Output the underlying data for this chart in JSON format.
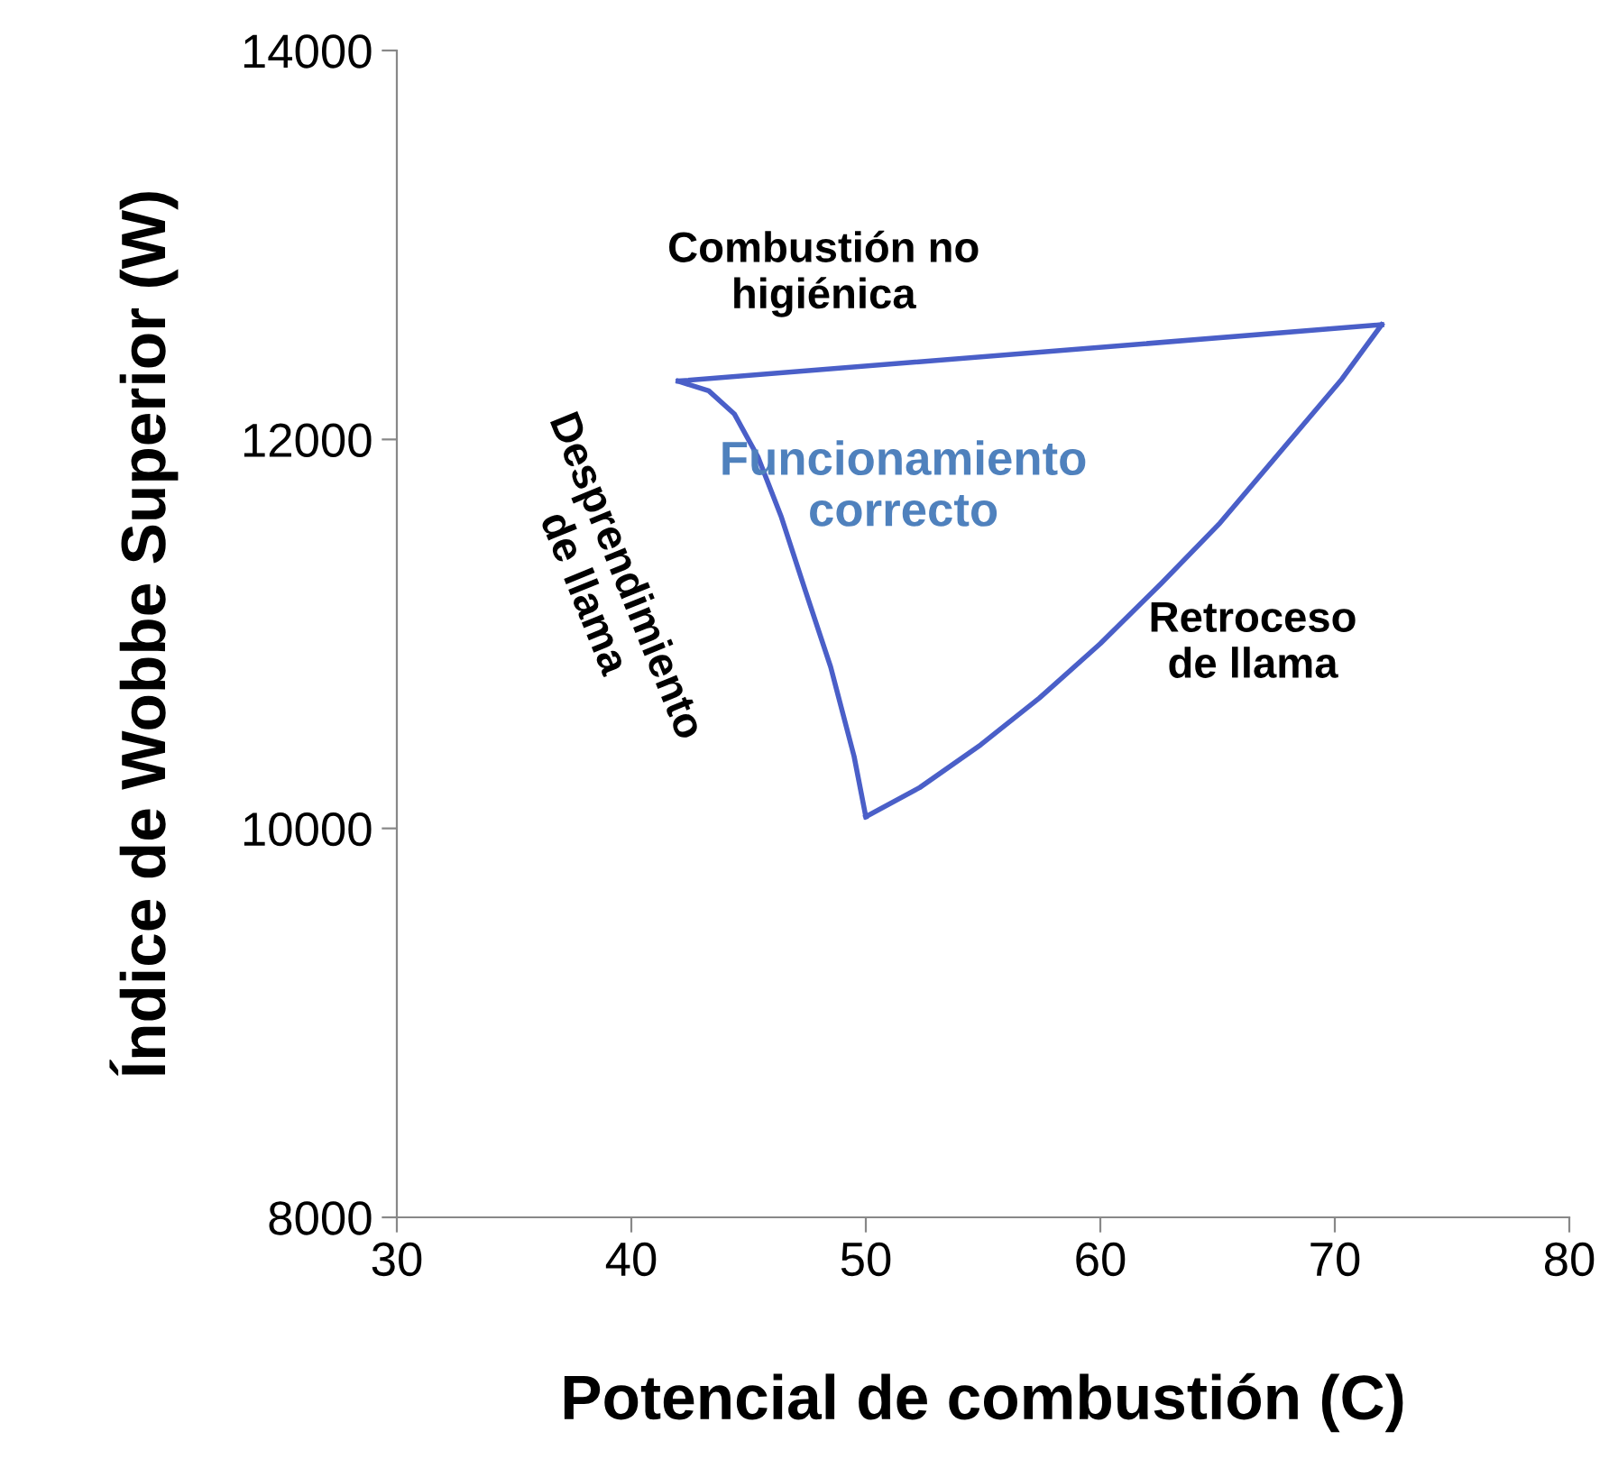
{
  "chart_data": {
    "type": "line",
    "xlabel": "Potencial de combustión (C)",
    "ylabel": "Índice de Wobbe Superior (W)",
    "series": [
      {
        "color": "#4a5fc8",
        "x": [
          42,
          72
        ],
        "values": [
          12300,
          12590
        ]
      },
      {
        "color": "#4a5fc8",
        "x": [
          42,
          43.3,
          44.4,
          45.4,
          46.4,
          47.4,
          48.5,
          49.5,
          50
        ],
        "values": [
          12300,
          12250,
          12130,
          11910,
          11600,
          11230,
          10830,
          10370,
          10060
        ]
      },
      {
        "color": "#4a5fc8",
        "x": [
          50,
          52.3,
          54.9,
          57.4,
          60,
          62.6,
          65.1,
          67.7,
          70.3,
          72
        ],
        "values": [
          10060,
          10210,
          10430,
          10670,
          10950,
          11260,
          11570,
          11940,
          12310,
          12590
        ]
      }
    ],
    "xlim": [
      30,
      80
    ],
    "xticks": [
      30,
      40,
      50,
      60,
      70,
      80
    ],
    "ylim": [
      8000,
      14000
    ],
    "yticks": [
      8000,
      10000,
      12000,
      14000
    ],
    "grid": false,
    "legend": false,
    "marker": "none",
    "line_style": "solid",
    "annotations": [
      "Combustión no\nhigiénica",
      "Funcionamiento\ncorrecto",
      "Retroceso\nde llama",
      "Desprendimiento\nde llama"
    ]
  }
}
